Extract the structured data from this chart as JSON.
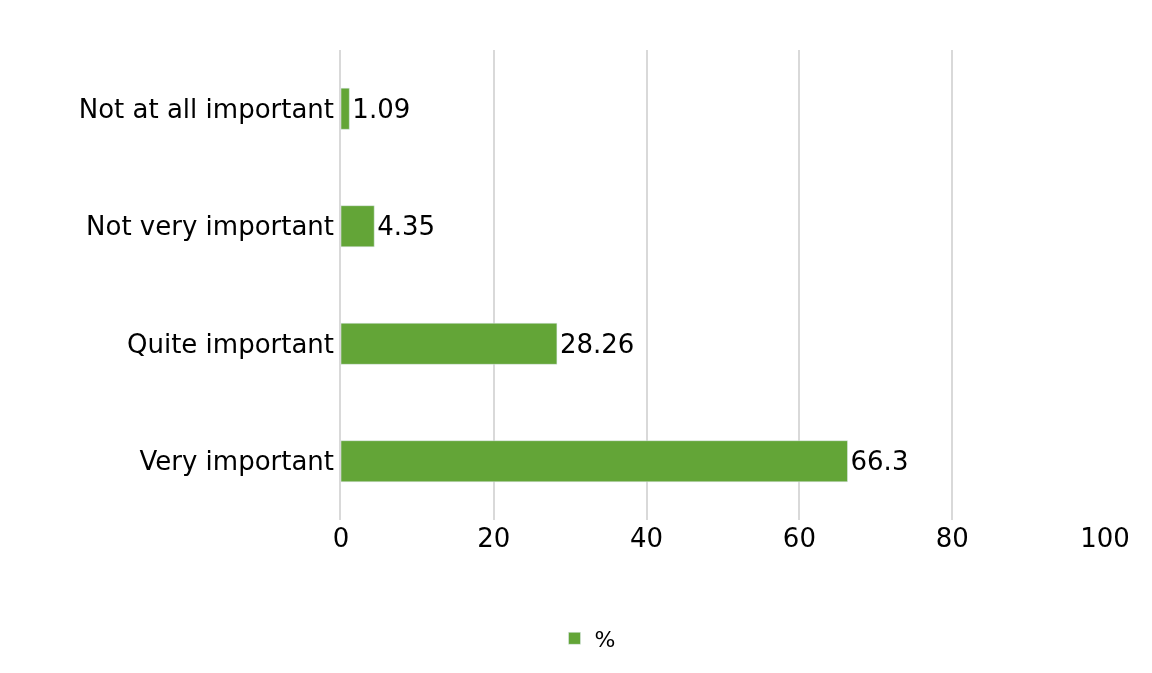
{
  "chart_data": {
    "type": "bar",
    "orientation": "horizontal",
    "categories": [
      "Not at all important",
      "Not very important",
      "Quite important",
      "Very important"
    ],
    "series": [
      {
        "name": "%",
        "color": "#63a537",
        "values": [
          1.09,
          4.35,
          28.26,
          66.3
        ]
      }
    ],
    "xlim": [
      0,
      100
    ],
    "xticks": [
      0,
      20,
      40,
      60,
      80,
      100
    ],
    "grid": "x",
    "legend": "bottom",
    "data_labels": true
  }
}
